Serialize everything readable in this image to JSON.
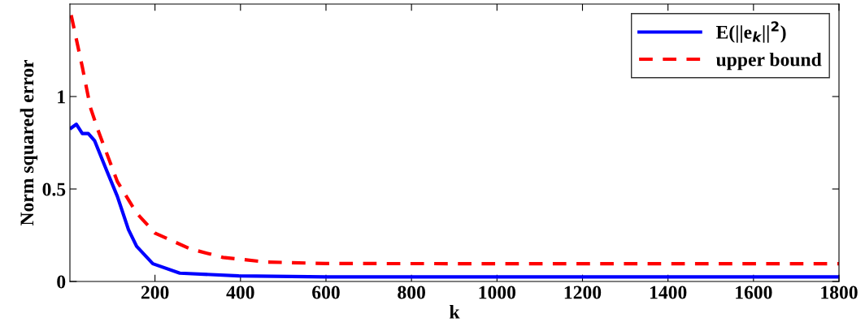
{
  "chart_data": {
    "type": "line",
    "xlabel": "k",
    "ylabel": "Norm squared error",
    "xlim": [
      1,
      1800
    ],
    "ylim": [
      0,
      1.5
    ],
    "xticks": [
      200,
      400,
      600,
      800,
      1000,
      1200,
      1400,
      1600,
      1800
    ],
    "yticks": [
      0,
      0.5,
      1
    ],
    "grid": false,
    "legend": "top right",
    "series": [
      {
        "name": "E(||e$_{k}$||$^{2}$)",
        "color": "#0000ff",
        "line_style": "solid",
        "x": [
          4,
          16,
          30,
          44,
          59,
          87,
          112,
          138,
          157,
          195,
          258,
          396,
          600,
          1000,
          1400,
          1800
        ],
        "values": [
          0.83,
          0.85,
          0.8,
          0.8,
          0.76,
          0.6,
          0.46,
          0.28,
          0.19,
          0.096,
          0.045,
          0.03,
          0.025,
          0.025,
          0.025,
          0.025
        ]
      },
      {
        "name": "upper bound",
        "color": "#ff0000",
        "line_style": "dashed",
        "x": [
          4,
          30,
          49,
          68,
          112,
          157,
          201,
          283,
          359,
          461,
          600,
          1000,
          1400,
          1800
        ],
        "values": [
          1.44,
          1.16,
          0.94,
          0.81,
          0.54,
          0.37,
          0.26,
          0.176,
          0.13,
          0.105,
          0.097,
          0.096,
          0.096,
          0.096
        ]
      }
    ]
  }
}
